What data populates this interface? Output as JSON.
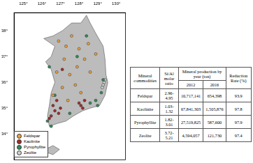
{
  "chart_data": {
    "type": "scatter",
    "xlim": [
      124.5,
      130.5
    ],
    "ylim": [
      33,
      38.7
    ],
    "xticks": [
      {
        "value": 125,
        "label": "125°"
      },
      {
        "value": 126,
        "label": "126°"
      },
      {
        "value": 127,
        "label": "127°"
      },
      {
        "value": 128,
        "label": "128°"
      },
      {
        "value": 129,
        "label": "129°"
      },
      {
        "value": 130,
        "label": "130°"
      }
    ],
    "yticks": [
      {
        "value": 34,
        "label": "34°"
      },
      {
        "value": 35,
        "label": "35°"
      },
      {
        "value": 36,
        "label": "36°"
      },
      {
        "value": 37,
        "label": "37°"
      },
      {
        "value": 38,
        "label": "38°"
      }
    ],
    "grid": false,
    "legend": "lower left",
    "outline": [
      [
        [
          126.1,
          37.7
        ],
        [
          126.6,
          37.8
        ],
        [
          127.1,
          38.0
        ],
        [
          127.6,
          38.3
        ],
        [
          128.1,
          38.3
        ],
        [
          128.4,
          38.6
        ],
        [
          128.6,
          38.3
        ],
        [
          128.9,
          37.9
        ],
        [
          129.3,
          37.4
        ],
        [
          129.4,
          36.9
        ],
        [
          129.45,
          36.3
        ],
        [
          129.55,
          36.0
        ],
        [
          129.4,
          35.5
        ],
        [
          129.1,
          35.1
        ],
        [
          128.6,
          35.0
        ],
        [
          128.2,
          34.9
        ],
        [
          127.7,
          34.7
        ],
        [
          127.3,
          34.5
        ],
        [
          126.8,
          34.4
        ],
        [
          126.4,
          34.3
        ],
        [
          126.3,
          34.7
        ],
        [
          126.4,
          35.1
        ],
        [
          126.5,
          35.6
        ],
        [
          126.7,
          36.0
        ],
        [
          126.5,
          36.5
        ],
        [
          126.2,
          36.8
        ],
        [
          126.5,
          37.0
        ],
        [
          126.7,
          37.4
        ]
      ],
      [
        [
          126.2,
          33.3
        ],
        [
          126.6,
          33.2
        ],
        [
          126.95,
          33.4
        ],
        [
          126.6,
          33.55
        ],
        [
          126.3,
          33.45
        ]
      ]
    ],
    "series": [
      {
        "name": "Feldspar",
        "color": "#e8a040",
        "marker": "circle",
        "x": [
          126.9,
          127.3,
          127.6,
          128.0,
          128.5,
          128.9,
          127.2,
          127.9,
          128.3,
          127.5,
          126.8,
          127.1,
          128.6,
          127.8,
          126.6,
          127.4,
          128.1
        ],
        "y": [
          37.6,
          37.4,
          37.8,
          37.3,
          37.5,
          37.1,
          36.9,
          36.6,
          36.9,
          36.3,
          36.4,
          35.8,
          36.4,
          35.9,
          35.5,
          35.3,
          35.6
        ]
      },
      {
        "name": "Kaolinite",
        "color": "#a52a2a",
        "marker": "circle",
        "x": [
          126.5,
          126.7,
          126.6,
          126.9,
          127.0,
          126.4,
          128.1,
          128.3,
          128.0,
          128.2,
          127.1,
          126.8
        ],
        "y": [
          34.7,
          34.9,
          35.1,
          34.8,
          35.0,
          34.6,
          35.1,
          35.3,
          35.2,
          35.0,
          36.5,
          35.3
        ]
      },
      {
        "name": "Pyrophyllite",
        "color": "#2e8b57",
        "marker": "circle",
        "x": [
          126.3,
          126.5,
          126.7,
          127.5,
          128.6,
          128.9,
          129.0,
          129.2,
          126.4,
          128.4,
          129.3,
          127.9
        ],
        "y": [
          34.5,
          34.3,
          35.5,
          34.8,
          35.2,
          35.3,
          35.1,
          35.6,
          36.6,
          37.8,
          36.1,
          37.0
        ]
      },
      {
        "name": "Zeolite",
        "color": "#d0d0d0",
        "marker": "circle",
        "x": [
          129.35,
          129.3,
          129.4,
          129.25
        ],
        "y": [
          36.0,
          35.9,
          36.1,
          35.8
        ]
      }
    ]
  },
  "table": {
    "columns": [
      "Mineral commodities",
      "Si/Al molar ratio",
      {
        "label": "Mineral production by year (ton)",
        "sub": [
          "2012",
          "2016"
        ]
      },
      "Reduction Rate (%)"
    ],
    "rows": [
      [
        "Feldspar",
        "2.96-4.95",
        "10,717,141",
        "654,398",
        "93.9"
      ],
      [
        "Kaolinite",
        "1.03-1.32",
        "67,841,303",
        "1,505,876",
        "97.8"
      ],
      [
        "Pyrophyllite",
        "1.82-3.01",
        "27,519,825",
        "587,600",
        "97.9"
      ],
      [
        "Zeolite",
        "3.72-5.21",
        "4,594,057",
        "121,730",
        "97.4"
      ]
    ]
  }
}
